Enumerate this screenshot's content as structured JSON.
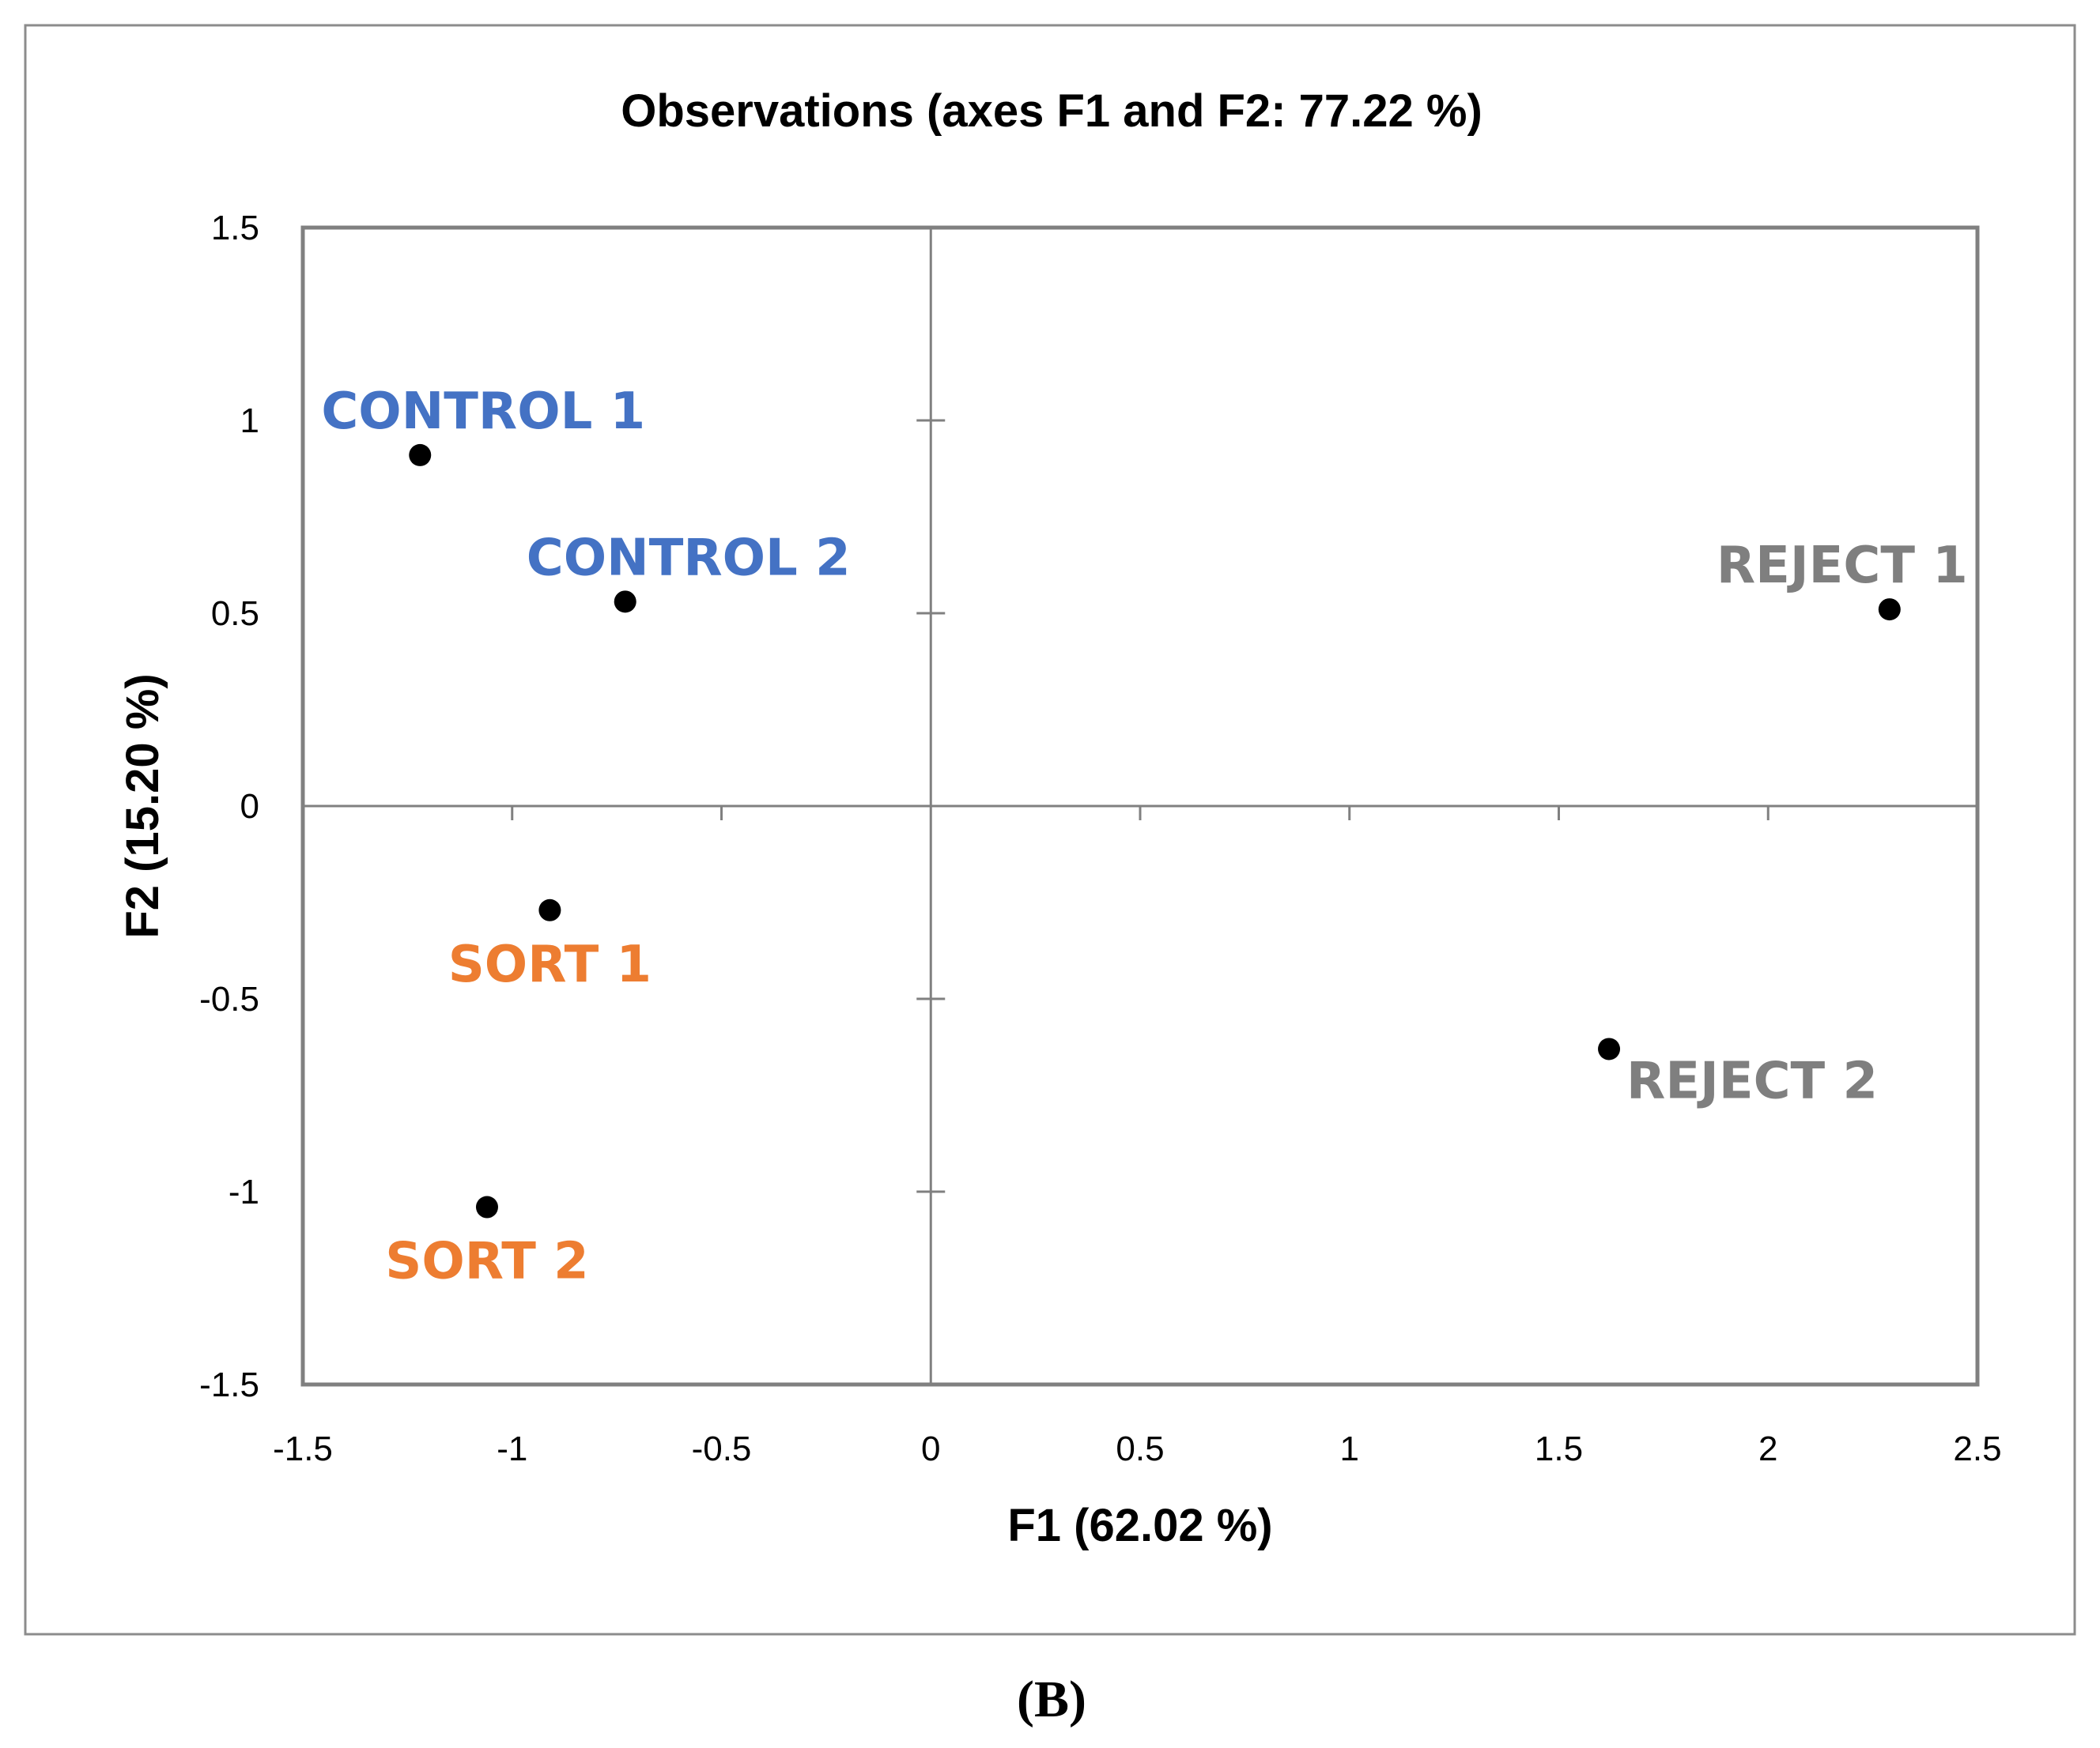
{
  "chart_data": {
    "type": "scatter",
    "title": "Observations (axes F1 and F2: 77.22 %)",
    "xlabel": "F1 (62.02 %)",
    "ylabel": "F2 (15.20 %)",
    "xlim": [
      -1.5,
      2.5
    ],
    "ylim": [
      -1.5,
      1.5
    ],
    "x_ticks": [
      "-1.5",
      "-1",
      "-0.5",
      "0",
      "0.5",
      "1",
      "1.5",
      "2",
      "2.5"
    ],
    "x_tick_values": [
      -1.5,
      -1,
      -0.5,
      0,
      0.5,
      1,
      1.5,
      2,
      2.5
    ],
    "y_ticks": [
      "1.5",
      "1",
      "0.5",
      "0",
      "-0.5",
      "-1",
      "-1.5"
    ],
    "y_tick_values": [
      1.5,
      1,
      0.5,
      0,
      -0.5,
      -1,
      -1.5
    ],
    "grid": false,
    "points": [
      {
        "label": "CONTROL 1",
        "x": -1.22,
        "y": 0.91,
        "color": "#4472C4",
        "label_position": "above"
      },
      {
        "label": "CONTROL 2",
        "x": -0.73,
        "y": 0.53,
        "color": "#4472C4",
        "label_position": "above"
      },
      {
        "label": "SORT 1",
        "x": -0.91,
        "y": -0.27,
        "color": "#ED7D31",
        "label_position": "below"
      },
      {
        "label": "SORT 2",
        "x": -1.06,
        "y": -1.04,
        "color": "#ED7D31",
        "label_position": "below"
      },
      {
        "label": "REJECT 1",
        "x": 2.29,
        "y": 0.51,
        "color": "#7F7F7F",
        "label_position": "above-left"
      },
      {
        "label": "REJECT 2",
        "x": 1.62,
        "y": -0.63,
        "color": "#7F7F7F",
        "label_position": "below-right"
      }
    ]
  },
  "caption": "(B)"
}
